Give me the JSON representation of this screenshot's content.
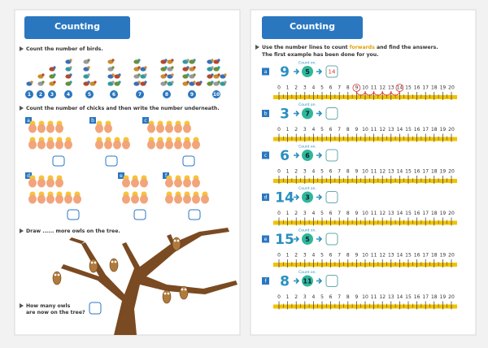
{
  "left_page": {
    "title": "Counting",
    "birds": {
      "instruction": "Count the number of birds.",
      "counts": [
        1,
        2,
        3,
        4,
        5,
        6,
        7,
        8,
        9,
        10
      ]
    },
    "chicks": {
      "instruction": "Count the number of chicks and then write the number underneath.",
      "labels": [
        "a",
        "b",
        "c",
        "d",
        "e",
        "f"
      ]
    },
    "owls": {
      "instruction": "Draw ...... more owls on the tree.",
      "question": [
        "How many owls",
        "are now on the tree?"
      ]
    }
  },
  "right_page": {
    "title": "Counting",
    "instruction": [
      "Use the number lines to count ",
      "forwards",
      " and find the answers.",
      "The first example has been done for you."
    ],
    "count_on": "Count on.",
    "number_line": [
      0,
      1,
      2,
      3,
      4,
      5,
      6,
      7,
      8,
      9,
      10,
      11,
      12,
      13,
      14,
      15,
      16,
      17,
      18,
      19,
      20
    ],
    "rows": [
      {
        "label": "a",
        "start": 9,
        "add": 5,
        "answer": 14
      },
      {
        "label": "b",
        "start": 3,
        "add": 7
      },
      {
        "label": "c",
        "start": 6,
        "add": 6
      },
      {
        "label": "d",
        "start": 14,
        "add": 3
      },
      {
        "label": "e",
        "start": 15,
        "add": 5
      },
      {
        "label": "f",
        "start": 8,
        "add": 11
      }
    ]
  }
}
